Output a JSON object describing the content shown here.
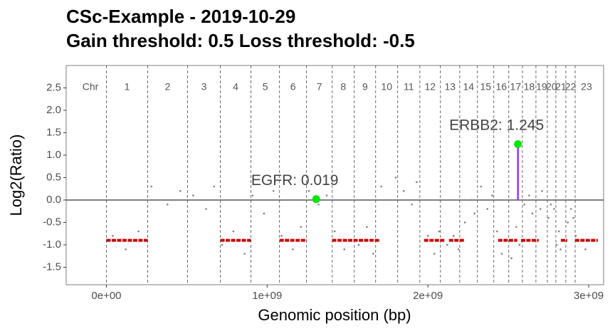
{
  "chart_data": {
    "type": "copy-number",
    "title": "CSc-Example - 2019-10-29",
    "subtitle": "Gain threshold:  0.5  Loss threshold: -0.5",
    "x_label": "Genomic position (bp)",
    "y_label": "Log2(Ratio)",
    "xlim": [
      -250000000.0,
      3093000000.0
    ],
    "ylim": [
      -1.89,
      3.0
    ],
    "xticks": [
      {
        "value": 0,
        "label": "0e+00"
      },
      {
        "value": 1000000000.0,
        "label": "1e+09"
      },
      {
        "value": 2000000000.0,
        "label": "2e+09"
      },
      {
        "value": 3000000000.0,
        "label": "3e+09"
      }
    ],
    "yticks": [
      2.5,
      {
        "value": 2,
        "label": "2.0"
      },
      1.5,
      {
        "value": 1,
        "label": "1.0"
      },
      0.5,
      {
        "value": 0,
        "label": "0.0"
      },
      -0.5,
      {
        "value": -1,
        "label": "-1.0"
      },
      -1.5
    ],
    "chromosomes": {
      "heading": "Chr",
      "names": [
        "1",
        "2",
        "3",
        "4",
        "5",
        "6",
        "7",
        "8",
        "9",
        "10",
        "11",
        "12",
        "13",
        "14",
        "15",
        "16",
        "17",
        "18",
        "19",
        "20",
        "21",
        "22",
        "23"
      ],
      "starts": [
        0,
        257000000.0,
        505000000.0,
        709000000.0,
        899000000.0,
        1077000000.0,
        1245000000.0,
        1405000000.0,
        1542000000.0,
        1675000000.0,
        1812000000.0,
        1950000000.0,
        2078000000.0,
        2198000000.0,
        2308000000.0,
        2410000000.0,
        2503000000.0,
        2588000000.0,
        2672000000.0,
        2743000000.0,
        2796000000.0,
        2858000000.0,
        2916000000.0
      ],
      "ends": [
        257000000.0,
        505000000.0,
        709000000.0,
        899000000.0,
        1077000000.0,
        1245000000.0,
        1405000000.0,
        1542000000.0,
        1675000000.0,
        1812000000.0,
        1950000000.0,
        2078000000.0,
        2198000000.0,
        2308000000.0,
        2410000000.0,
        2503000000.0,
        2588000000.0,
        2672000000.0,
        2743000000.0,
        2796000000.0,
        2858000000.0,
        2916000000.0,
        3057000000.0
      ]
    },
    "probes": {
      "color": "#808080",
      "x": [
        40000000.0,
        120000000.0,
        200000000.0,
        280000000.0,
        380000000.0,
        460000000.0,
        540000000.0,
        620000000.0,
        670000000.0,
        720000000.0,
        790000000.0,
        860000000.0,
        910000000.0,
        980000000.0,
        1040000000.0,
        1090000000.0,
        1160000000.0,
        1210000000.0,
        1260000000.0,
        1320000000.0,
        1370000000.0,
        1420000000.0,
        1480000000.0,
        1520000000.0,
        1570000000.0,
        1620000000.0,
        1660000000.0,
        1710000000.0,
        1760000000.0,
        1800000000.0,
        1850000000.0,
        1900000000.0,
        1930000000.0,
        2000000000.0,
        2040000000.0,
        2070000000.0,
        2120000000.0,
        2160000000.0,
        2190000000.0,
        2230000000.0,
        2270000000.0,
        2290000000.0,
        2330000000.0,
        2370000000.0,
        2400000000.0,
        2430000000.0,
        2460000000.0,
        2490000000.0,
        2520000000.0,
        2550000000.0,
        2570000000.0,
        2600000000.0,
        2630000000.0,
        2650000000.0,
        2680000000.0,
        2700000000.0,
        2710000000.0,
        2750000000.0,
        2765000000.0,
        2785000000.0,
        2800000000.0,
        2815000000.0,
        2825000000.0,
        2870000000.0,
        2890000000.0,
        2905000000.0,
        2920000000.0,
        2980000000.0,
        3020000000.0
      ],
      "values": [
        -0.8,
        -1.1,
        -0.7,
        0.3,
        -0.1,
        0.2,
        0.1,
        -0.2,
        0.3,
        -1.0,
        -0.7,
        -1.2,
        0.1,
        -0.3,
        0.2,
        -0.8,
        -1.1,
        -0.6,
        0.2,
        -0.1,
        0.1,
        -0.7,
        -1.1,
        -0.9,
        -1.0,
        -0.6,
        -1.2,
        0.3,
        0.0,
        0.5,
        0.2,
        -0.1,
        0.4,
        -0.8,
        -1.2,
        -0.7,
        -1.0,
        -0.8,
        -1.1,
        -0.5,
        0.0,
        -0.3,
        0.3,
        -0.2,
        0.1,
        -0.7,
        -1.2,
        -0.9,
        -1.3,
        -0.6,
        -1.0,
        -0.1,
        0.1,
        -0.3,
        0.0,
        -0.2,
        0.2,
        -0.4,
        -0.1,
        -0.2,
        -1.0,
        -0.7,
        -1.1,
        -0.5,
        -0.2,
        -0.4,
        -0.8,
        -1.1,
        -0.9
      ]
    },
    "segments": {
      "color": "#cc0000",
      "start": [
        0,
        709000000.0,
        1077000000.0,
        1404000000.0,
        1976000000.0,
        2131000000.0,
        2437000000.0,
        2579000000.0,
        2827000000.0,
        2915000000.0
      ],
      "end": [
        257000000.0,
        899000000.0,
        1245000000.0,
        1697000000.0,
        2109000000.0,
        2224000000.0,
        2556000000.0,
        2689000000.0,
        2867000000.0,
        3057000000.0
      ],
      "values": [
        -0.9,
        -0.9,
        -0.9,
        -0.9,
        -0.9,
        -0.9,
        -0.9,
        -0.9,
        -0.9,
        -0.9
      ]
    },
    "genes": {
      "color": "#00e600",
      "stem_color": "#9933ff",
      "x": [
        1305000000.0,
        2560000000.0
      ],
      "values": [
        0.019,
        1.245
      ],
      "value_labels": [
        "EGFR: 0.019",
        "ERBB2: 1.245"
      ]
    }
  }
}
